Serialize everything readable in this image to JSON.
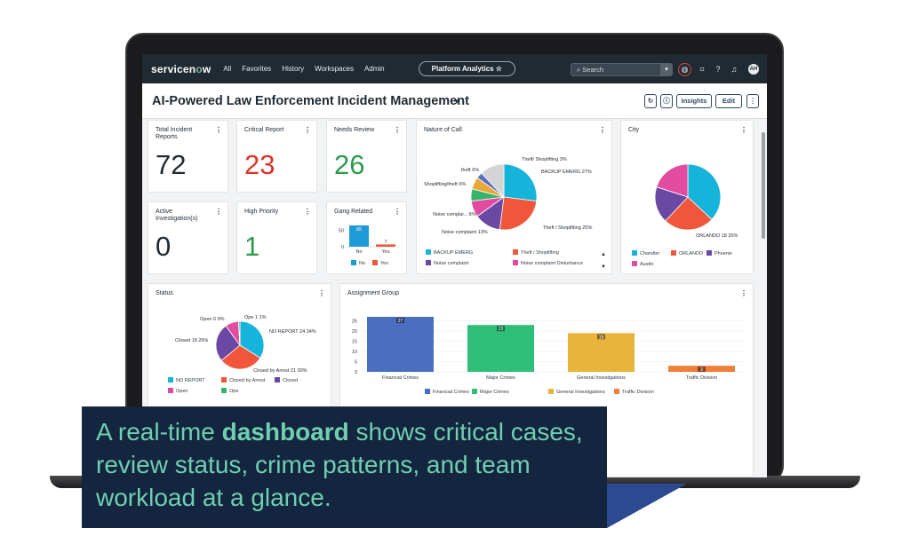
{
  "nav": {
    "logo_left": "servicen",
    "logo_o": "o",
    "logo_right": "w",
    "menu": [
      "All",
      "Favorites",
      "History",
      "Workspaces",
      "Admin"
    ],
    "platform_analytics": "Platform Analytics ☆",
    "search_placeholder": "Search",
    "avatar_initials": "AH"
  },
  "page": {
    "title": "AI-Powered Law Enforcement Incident Management",
    "insights_label": "Insights",
    "edit_label": "Edit"
  },
  "kpis": {
    "total_incident_reports": {
      "label": "Total Incident Reports",
      "value": "72"
    },
    "critical_report": {
      "label": "Critical Report",
      "value": "23",
      "color": "#d9352b"
    },
    "needs_review": {
      "label": "Needs Review",
      "value": "26",
      "color": "#2e9a4f"
    },
    "active_investigations": {
      "label": "Active Investigation(s)",
      "value": "0"
    },
    "high_priority": {
      "label": "High Priority",
      "value": "1",
      "color": "#2e9a4f"
    }
  },
  "chart_data": [
    {
      "title": "Gang Related",
      "type": "bar",
      "categories": [
        "No",
        "Yes"
      ],
      "values": [
        65,
        7
      ],
      "ylim": [
        0,
        65
      ],
      "yticks": [
        "50",
        "0"
      ],
      "colors": [
        "#1e9bd7",
        "#f0563a"
      ],
      "legend": [
        "No",
        "Yes"
      ]
    },
    {
      "title": "Nature of Call",
      "type": "pie",
      "slices": [
        {
          "label": "BACKUP EMERG",
          "pct": 27,
          "color": "#16b3da"
        },
        {
          "label": "Theft / Shoplifting",
          "pct": 25,
          "color": "#f0563a"
        },
        {
          "label": "Noise complaint",
          "pct": 13,
          "color": "#6a48a3"
        },
        {
          "label": "Noise complai...",
          "pct": 8,
          "color": "#e24ca0"
        },
        {
          "label": "Shoplifting/theft",
          "pct": 6,
          "color": "#37b46c"
        },
        {
          "label": "theft",
          "pct": 6,
          "color": "#e8a838"
        },
        {
          "label": "Theft/ Shoplifting",
          "pct": 3,
          "color": "#5a6fbf"
        },
        {
          "label": "",
          "pct": 12,
          "color": "#d4d4d4"
        }
      ],
      "slice_labels": [
        "BACKUP EMERG 27%",
        "Theft / Shoplifting 25%",
        "Noise complaint 13%",
        "Noise complai... 8%",
        "Shoplifting/theft 6%",
        "theft 6%",
        "Theft/ Shoplifting 3%"
      ],
      "legend": [
        {
          "label": "BACKUP EMERG",
          "color": "#16b3da"
        },
        {
          "label": "Theft / Shoplifting",
          "color": "#f0563a"
        },
        {
          "label": "Noise complaint",
          "color": "#6a48a3"
        },
        {
          "label": "Noise complaint Disturbance",
          "color": "#e24ca0"
        }
      ]
    },
    {
      "title": "City",
      "type": "pie",
      "slices": [
        {
          "label": "Chandler",
          "pct": 37,
          "color": "#16b3da"
        },
        {
          "label": "ORLANDO",
          "pct": 25,
          "color": "#f0563a"
        },
        {
          "label": "Phoenix",
          "pct": 18,
          "color": "#6a48a3"
        },
        {
          "label": "Austin",
          "pct": 20,
          "color": "#e24ca0"
        }
      ],
      "slice_labels": [
        "ORLANDO 18 25%"
      ],
      "legend": [
        {
          "label": "Chandler",
          "color": "#16b3da"
        },
        {
          "label": "ORLANDO",
          "color": "#f0563a"
        },
        {
          "label": "Phoenix",
          "color": "#6a48a3"
        },
        {
          "label": "Austin",
          "color": "#e24ca0"
        }
      ]
    },
    {
      "title": "Status",
      "type": "pie",
      "slices": [
        {
          "label": "NO REPORT",
          "value": 24,
          "pct": 34,
          "color": "#16b3da"
        },
        {
          "label": "Closed by Arrest",
          "value": 21,
          "pct": 30,
          "color": "#f0563a"
        },
        {
          "label": "Closed",
          "value": 18,
          "pct": 26,
          "color": "#6a48a3"
        },
        {
          "label": "Open",
          "value": 6,
          "pct": 9,
          "color": "#e24ca0"
        },
        {
          "label": "Ope",
          "value": 1,
          "pct": 1,
          "color": "#37b46c"
        }
      ],
      "slice_labels": [
        "NO REPORT 24 34%",
        "Closed by Arrest 21 30%",
        "Closed 18 26%",
        "Open 6 9%",
        "Ope 1 1%"
      ],
      "legend": [
        {
          "label": "NO REPORT",
          "color": "#16b3da"
        },
        {
          "label": "Closed by Arrest",
          "color": "#f0563a"
        },
        {
          "label": "Closed",
          "color": "#6a48a3"
        },
        {
          "label": "Open",
          "color": "#e24ca0"
        },
        {
          "label": "Ope",
          "color": "#37b46c"
        }
      ]
    },
    {
      "title": "Assignment Group",
      "type": "bar",
      "categories": [
        "Financial Crimes",
        "Major Crimes",
        "General Investigations",
        "Traffic Division"
      ],
      "values": [
        27,
        23,
        19,
        3
      ],
      "ylim": [
        0,
        27
      ],
      "yticks": [
        25,
        20,
        15,
        10,
        5,
        0
      ],
      "colors": [
        "#4b6fbf",
        "#2fbf78",
        "#e8b43c",
        "#f07f3a"
      ],
      "legend": [
        "Financial Crimes",
        "Major Crimes",
        "General Investigations",
        "Traffic Division"
      ]
    }
  ],
  "caption": {
    "pre": "A real-time ",
    "bold": "dashboard",
    "post": " shows critical cases, review status, crime patterns, and team workload at a glance."
  }
}
